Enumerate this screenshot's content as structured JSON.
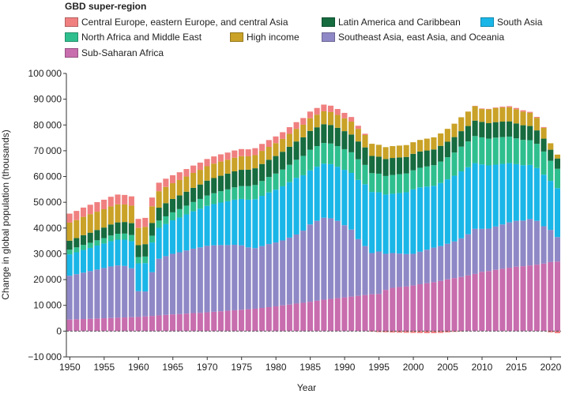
{
  "chart_data": {
    "type": "bar",
    "stacked": true,
    "legend_title": "GBD super-region",
    "xlabel": "Year",
    "ylabel": "Change in global population (thousands)",
    "ylim": [
      -10000,
      100000
    ],
    "xlim": [
      1950,
      2021
    ],
    "yticks": [
      -10000,
      0,
      10000,
      20000,
      30000,
      40000,
      50000,
      60000,
      70000,
      80000,
      90000,
      100000
    ],
    "ytick_labels": [
      "−10 000",
      "0",
      "10 000",
      "20 000",
      "30 000",
      "40 000",
      "50 000",
      "60 000",
      "70 000",
      "80 000",
      "90 000",
      "100 000"
    ],
    "xticks": [
      1950,
      1955,
      1960,
      1965,
      1970,
      1975,
      1980,
      1985,
      1990,
      1995,
      2000,
      2005,
      2010,
      2015,
      2020
    ],
    "years": [
      1950,
      1951,
      1952,
      1953,
      1954,
      1955,
      1956,
      1957,
      1958,
      1959,
      1960,
      1961,
      1962,
      1963,
      1964,
      1965,
      1966,
      1967,
      1968,
      1969,
      1970,
      1971,
      1972,
      1973,
      1974,
      1975,
      1976,
      1977,
      1978,
      1979,
      1980,
      1981,
      1982,
      1983,
      1984,
      1985,
      1986,
      1987,
      1988,
      1989,
      1990,
      1991,
      1992,
      1993,
      1994,
      1995,
      1996,
      1997,
      1998,
      1999,
      2000,
      2001,
      2002,
      2003,
      2004,
      2005,
      2006,
      2007,
      2008,
      2009,
      2010,
      2011,
      2012,
      2013,
      2014,
      2015,
      2016,
      2017,
      2018,
      2019,
      2020,
      2021
    ],
    "series": [
      {
        "name": "Sub-Saharan Africa",
        "color": "#c86dae",
        "values": [
          4500,
          4600,
          4700,
          4800,
          4900,
          5000,
          5100,
          5200,
          5300,
          5400,
          5500,
          5700,
          5900,
          6100,
          6300,
          6500,
          6600,
          6800,
          7000,
          7100,
          7300,
          7500,
          7700,
          7900,
          8100,
          8300,
          8500,
          8700,
          9000,
          9300,
          9600,
          10000,
          10300,
          10700,
          11000,
          11400,
          11800,
          12200,
          12500,
          12800,
          13100,
          13400,
          13700,
          14000,
          14300,
          14400,
          16000,
          16800,
          17100,
          17300,
          17700,
          18200,
          18600,
          19000,
          19500,
          20100,
          20600,
          21000,
          21600,
          22200,
          23000,
          23300,
          23800,
          24200,
          24600,
          25000,
          25200,
          25500,
          25800,
          26200,
          26800,
          27000
        ]
      },
      {
        "name": "Southeast Asia, east Asia, and Oceania",
        "color": "#8f88c6",
        "values": [
          17000,
          17500,
          18000,
          18500,
          19000,
          19500,
          20000,
          20300,
          20000,
          19000,
          10000,
          9700,
          17000,
          22000,
          22800,
          23500,
          24000,
          24500,
          25000,
          25400,
          25800,
          25800,
          25700,
          25500,
          25400,
          25000,
          24000,
          23500,
          24000,
          24500,
          24800,
          25200,
          26000,
          26800,
          28000,
          30000,
          31000,
          31800,
          31300,
          30000,
          28000,
          26000,
          22000,
          19000,
          16000,
          16500,
          14000,
          13500,
          13000,
          12600,
          12300,
          12600,
          13000,
          13400,
          13500,
          13800,
          14200,
          15000,
          16000,
          17500,
          16700,
          16500,
          16800,
          17200,
          17600,
          17800,
          17700,
          18000,
          17000,
          14500,
          12500,
          9500
        ]
      },
      {
        "name": "South Asia",
        "color": "#1ab6e8",
        "values": [
          8300,
          8500,
          8800,
          9000,
          9300,
          9500,
          9800,
          10000,
          10200,
          10500,
          10800,
          11000,
          11500,
          12000,
          12500,
          13000,
          13500,
          14000,
          14500,
          15000,
          15500,
          16000,
          16500,
          17000,
          17500,
          18000,
          18500,
          19000,
          19500,
          20000,
          20500,
          21000,
          21500,
          22000,
          21500,
          21000,
          21000,
          21000,
          21000,
          21000,
          21500,
          22000,
          23000,
          24000,
          23700,
          23000,
          23000,
          23000,
          23500,
          24000,
          25000,
          25000,
          24500,
          24000,
          24500,
          25000,
          25500,
          26000,
          26000,
          25500,
          25000,
          24500,
          24000,
          23500,
          23000,
          22000,
          21500,
          21000,
          20500,
          20000,
          19000,
          19000
        ]
      },
      {
        "name": "North Africa and Middle East",
        "color": "#2fbf8f",
        "values": [
          1800,
          1900,
          1950,
          2000,
          2050,
          2100,
          2200,
          2300,
          2350,
          2400,
          2450,
          2550,
          2650,
          2800,
          2950,
          3100,
          3250,
          3400,
          3600,
          3800,
          4000,
          4200,
          4400,
          4600,
          4800,
          5000,
          5250,
          5500,
          5750,
          6000,
          6250,
          6500,
          6750,
          7000,
          7500,
          8000,
          8000,
          8000,
          8000,
          8000,
          8000,
          8000,
          8000,
          7500,
          7300,
          7200,
          7200,
          7300,
          7300,
          7300,
          7400,
          7600,
          7800,
          8000,
          8300,
          8600,
          9000,
          9600,
          10000,
          10500,
          10500,
          10400,
          10500,
          10400,
          10300,
          10000,
          9800,
          9600,
          9400,
          9000,
          7800,
          7500
        ]
      },
      {
        "name": "Latin America and Caribbean",
        "color": "#166b3f",
        "values": [
          3500,
          3600,
          3800,
          3900,
          4000,
          4100,
          4300,
          4400,
          4500,
          4600,
          4600,
          4800,
          4900,
          5000,
          5100,
          5200,
          5300,
          5400,
          5500,
          5600,
          5800,
          5900,
          6000,
          6100,
          6200,
          6300,
          6400,
          6500,
          6600,
          6700,
          6800,
          6900,
          7000,
          7100,
          7200,
          7300,
          7300,
          7300,
          7200,
          7100,
          7000,
          6900,
          6900,
          6800,
          6700,
          6600,
          6600,
          6600,
          6500,
          6400,
          6400,
          6300,
          6200,
          6100,
          6100,
          6000,
          6000,
          6000,
          6000,
          6000,
          6000,
          6000,
          6000,
          6000,
          5900,
          5800,
          5700,
          5500,
          5200,
          5000,
          4300,
          4000
        ]
      },
      {
        "name": "High income",
        "color": "#c9a227",
        "values": [
          7000,
          7000,
          7100,
          7200,
          7100,
          7100,
          7000,
          7000,
          6800,
          6800,
          6700,
          6700,
          6500,
          6400,
          6300,
          6100,
          6000,
          5900,
          5800,
          5700,
          5600,
          5600,
          5500,
          5400,
          5300,
          5300,
          5200,
          5100,
          5100,
          5000,
          5000,
          5000,
          5000,
          4900,
          4900,
          4900,
          4900,
          5000,
          5000,
          5000,
          5000,
          5000,
          4900,
          4800,
          4700,
          4600,
          4600,
          4600,
          4600,
          4600,
          4500,
          4500,
          4600,
          4700,
          4800,
          5000,
          5200,
          5400,
          5600,
          5600,
          5000,
          5400,
          5500,
          5500,
          5500,
          5500,
          5300,
          5100,
          4900,
          4200,
          2500,
          1500
        ]
      },
      {
        "name": "Central Europe, eastern Europe, and central Asia",
        "color": "#f08080",
        "values": [
          3500,
          3550,
          3600,
          3650,
          3700,
          3700,
          3750,
          3800,
          3700,
          3600,
          3500,
          3500,
          3400,
          3300,
          3200,
          3100,
          3000,
          2900,
          2850,
          2800,
          2800,
          2800,
          2800,
          2800,
          2800,
          2750,
          2700,
          2700,
          2700,
          2650,
          2600,
          2600,
          2600,
          2600,
          2600,
          2600,
          2600,
          2600,
          2500,
          2300,
          2100,
          1800,
          1200,
          500,
          -200,
          -400,
          -450,
          -550,
          -600,
          -650,
          -700,
          -750,
          -800,
          -800,
          -700,
          -500,
          -300,
          -100,
          0,
          100,
          200,
          150,
          200,
          300,
          400,
          500,
          500,
          400,
          350,
          300,
          -500,
          -800
        ]
      }
    ]
  }
}
